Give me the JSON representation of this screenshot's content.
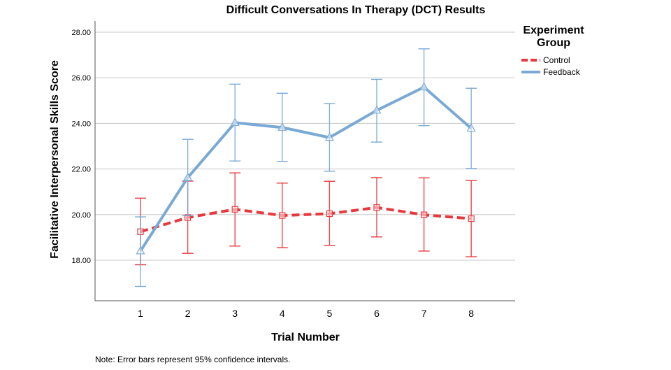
{
  "chart_data": {
    "type": "line",
    "title": "Difficult Conversations In Therapy (DCT) Results",
    "xlabel": "Trial Number",
    "ylabel": "Facilitative Interpersonal Skills Score",
    "categories": [
      "1",
      "2",
      "3",
      "4",
      "5",
      "6",
      "7",
      "8"
    ],
    "y_ticks": [
      "18.00",
      "20.00",
      "22.00",
      "24.00",
      "26.00",
      "28.00"
    ],
    "ylim": [
      16.2,
      28.3
    ],
    "grid": true,
    "legend": {
      "title_line1": "Experiment",
      "title_line2": "Group",
      "placement": "right"
    },
    "note": "Note: Error bars represent 95% confidence intervals.",
    "series": [
      {
        "name": "Control",
        "color": "#e8383d",
        "line_style": "dashed",
        "marker": "square",
        "values": [
          19.25,
          19.87,
          20.23,
          19.96,
          20.04,
          20.31,
          19.99,
          19.82
        ],
        "ci_low": [
          17.8,
          18.3,
          18.62,
          18.55,
          18.65,
          19.02,
          18.4,
          18.15
        ],
        "ci_high": [
          20.72,
          21.47,
          21.83,
          21.38,
          21.46,
          21.62,
          21.61,
          21.5
        ]
      },
      {
        "name": "Feedback",
        "color": "#7aaad4",
        "line_style": "solid",
        "marker": "triangle",
        "values": [
          18.4,
          21.62,
          24.03,
          23.82,
          23.38,
          24.57,
          25.59,
          23.78
        ],
        "ci_low": [
          16.85,
          19.95,
          22.35,
          22.33,
          21.9,
          23.18,
          23.9,
          22.02
        ],
        "ci_high": [
          19.9,
          23.3,
          25.72,
          25.32,
          24.87,
          25.93,
          27.27,
          25.54
        ]
      }
    ]
  }
}
